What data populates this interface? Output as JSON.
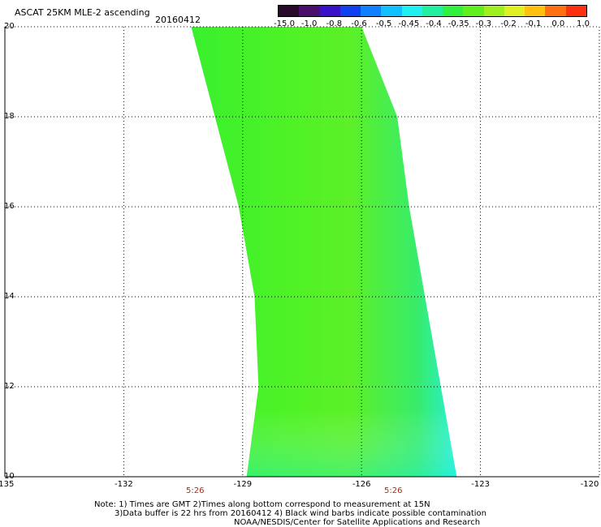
{
  "header": {
    "title": "ASCAT 25KM MLE-2 ascending",
    "date": "20160412"
  },
  "colorbar": {
    "labels": [
      "-15.0",
      "-1.0",
      "-0.8",
      "-0.6",
      "-0.5",
      "-0.45",
      "-0.4",
      "-0.35",
      "-0.3",
      "-0.2",
      "-0.1",
      "0.0",
      "1.0"
    ],
    "colors": [
      "#2a0a2a",
      "#4a0f6a",
      "#3a10c8",
      "#1040f0",
      "#1080ff",
      "#10c0ff",
      "#20f0f0",
      "#20f0a0",
      "#30f040",
      "#60f020",
      "#a0f020",
      "#e0f020",
      "#ffc010",
      "#ff7010",
      "#ff3010"
    ]
  },
  "map": {
    "lat_ticks": [
      "20",
      "18",
      "16",
      "14",
      "12",
      "10"
    ],
    "lon_ticks": [
      "-135",
      "-132",
      "-129",
      "-126",
      "-123",
      "-120"
    ],
    "lat_range": [
      10,
      20
    ],
    "lon_range": [
      -135,
      -120
    ],
    "grid": true,
    "times": [
      "5:26",
      "5:26"
    ],
    "time_lons": [
      -130.2,
      -125.2
    ],
    "swath_rows": [
      {
        "lat": 20.0,
        "west": -130.3,
        "east": -126.0
      },
      {
        "lat": 18.0,
        "west": -129.7,
        "east": -125.1
      },
      {
        "lat": 16.0,
        "west": -129.1,
        "east": -124.8
      },
      {
        "lat": 14.0,
        "west": -128.7,
        "east": -124.4
      },
      {
        "lat": 12.0,
        "west": -128.6,
        "east": -124.0
      },
      {
        "lat": 10.0,
        "west": -128.9,
        "east": -123.6
      }
    ]
  },
  "footer": {
    "line1": "Note: 1) Times are GMT 2)Times along bottom correspond to measurement at 15N",
    "line2": "3)Data buffer is 22 hrs from 20160412 4) Black wind barbs indicate possible contamination",
    "line3": "NOAA/NESDIS/Center for Satellite Applications and Research"
  }
}
